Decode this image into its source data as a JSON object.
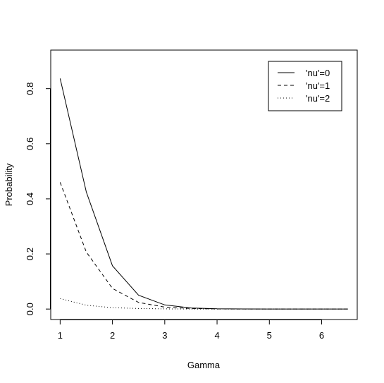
{
  "chart_data": {
    "type": "line",
    "title": "",
    "xlabel": "Gamma",
    "ylabel": "Probability",
    "xlim": [
      0.82,
      6.68
    ],
    "ylim": [
      -0.038,
      0.94
    ],
    "x_ticks": [
      1,
      2,
      3,
      4,
      5,
      6
    ],
    "y_ticks": [
      0.0,
      0.2,
      0.4,
      0.6,
      0.8
    ],
    "x_tick_labels": [
      "1",
      "2",
      "3",
      "4",
      "5",
      "6"
    ],
    "y_tick_labels": [
      "0.0",
      "0.2",
      "0.4",
      "0.6",
      "0.8"
    ],
    "grid": false,
    "legend_position": "top-right",
    "x": [
      1,
      1.5,
      2,
      2.5,
      3,
      3.5,
      4,
      4.5,
      5,
      5.5,
      6,
      6.5
    ],
    "series": [
      {
        "name": "'nu'=0",
        "line_style": "solid",
        "values": [
          0.837,
          0.425,
          0.157,
          0.05,
          0.015,
          0.004,
          0.001,
          0.0003,
          0.0001,
          0.0,
          0.0,
          0.0
        ]
      },
      {
        "name": "'nu'=1",
        "line_style": "dashed",
        "values": [
          0.46,
          0.207,
          0.075,
          0.024,
          0.007,
          0.002,
          0.0005,
          0.0001,
          0.0,
          0.0,
          0.0,
          0.0
        ]
      },
      {
        "name": "'nu'=2",
        "line_style": "dotted",
        "values": [
          0.038,
          0.014,
          0.005,
          0.002,
          0.0006,
          0.0002,
          0.0,
          0.0,
          0.0,
          0.0,
          0.0,
          0.0
        ]
      }
    ]
  }
}
